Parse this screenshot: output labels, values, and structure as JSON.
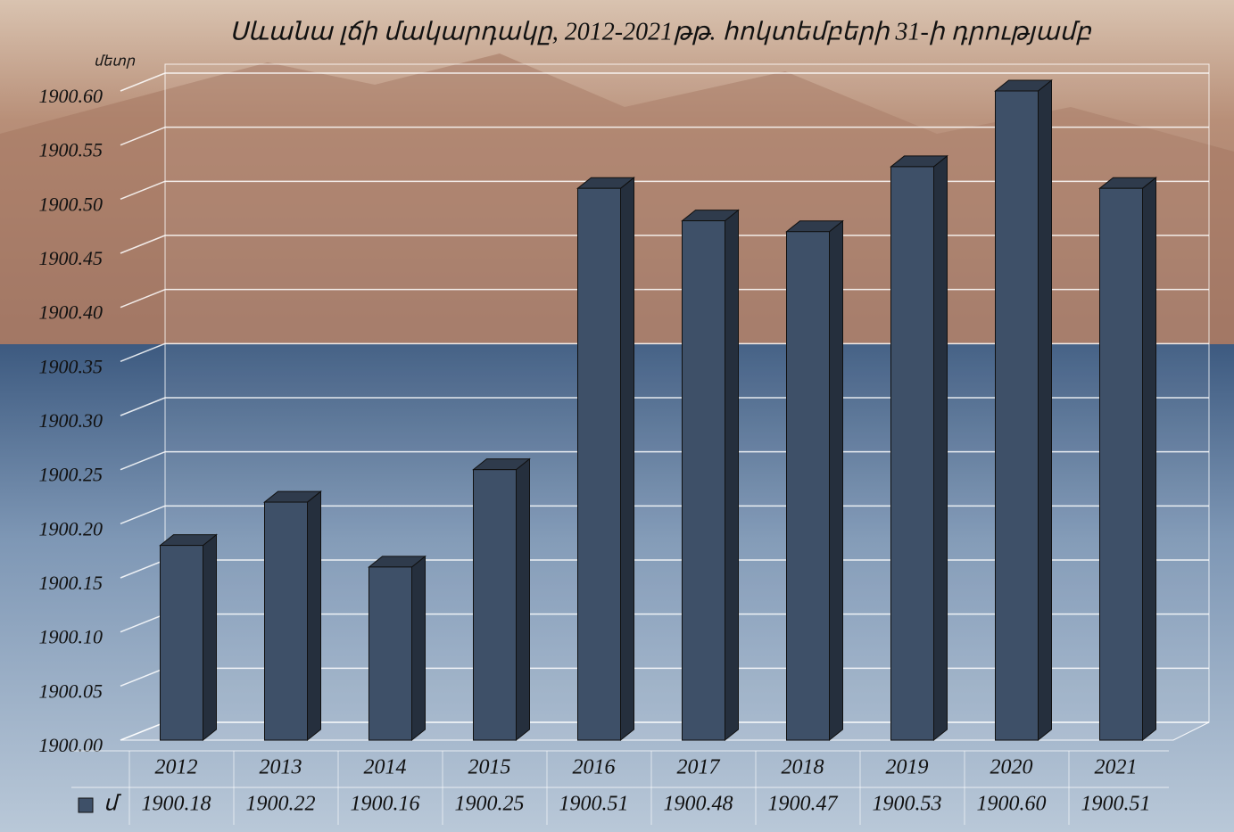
{
  "chart_data": {
    "type": "bar3d",
    "title": "Սևանա լճի մակարդակը, 2012-2021թթ. հոկտեմբերի 31-ի դրությամբ",
    "y_axis_label": "մետր",
    "categories": [
      "2012",
      "2013",
      "2014",
      "2015",
      "2016",
      "2017",
      "2018",
      "2019",
      "2020",
      "2021"
    ],
    "series": [
      {
        "name": "մ",
        "color": "#3e5068",
        "values": [
          1900.18,
          1900.22,
          1900.16,
          1900.25,
          1900.51,
          1900.48,
          1900.47,
          1900.53,
          1900.6,
          1900.51
        ],
        "value_labels": [
          "1900.18",
          "1900.22",
          "1900.16",
          "1900.25",
          "1900.51",
          "1900.48",
          "1900.47",
          "1900.53",
          "1900.60",
          "1900.51"
        ]
      }
    ],
    "ylim": [
      1900,
      1900.6
    ],
    "yticks": [
      {
        "value": 1900,
        "label": "1900.00"
      },
      1900.05,
      {
        "value": 1900.1,
        "label": "1900.10"
      },
      1900.15,
      {
        "value": 1900.2,
        "label": "1900.20"
      },
      1900.25,
      {
        "value": 1900.3,
        "label": "1900.30"
      },
      1900.35,
      {
        "value": 1900.4,
        "label": "1900.40"
      },
      1900.45,
      {
        "value": 1900.5,
        "label": "1900.50"
      },
      1900.55,
      {
        "value": 1900.6,
        "label": "1900.60"
      }
    ],
    "grid": true,
    "data_table": true
  }
}
